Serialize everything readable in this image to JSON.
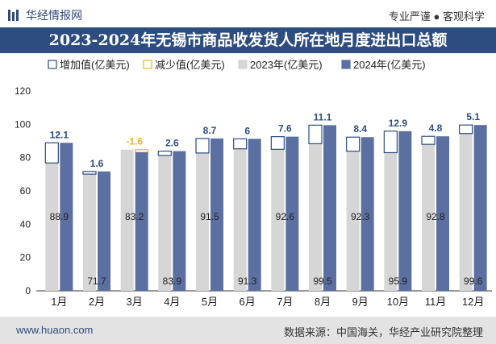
{
  "header": {
    "brand": "华经情报网",
    "slogan": "专业严谨 ● 客观科学"
  },
  "chart_data": {
    "type": "bar",
    "title": "2023-2024年无锡市商品收发货人所在地月度进出口总额",
    "categories": [
      "1月",
      "2月",
      "3月",
      "4月",
      "5月",
      "6月",
      "7月",
      "8月",
      "9月",
      "10月",
      "11月",
      "12月"
    ],
    "series": [
      {
        "name": "2023年(亿美元)",
        "values": [
          76.8,
          70.1,
          84.8,
          81.3,
          82.8,
          85.3,
          85.0,
          88.4,
          83.9,
          83.0,
          88.0,
          94.5
        ],
        "color": "#d6d6d6"
      },
      {
        "name": "2024年(亿美元)",
        "values": [
          88.9,
          71.7,
          83.2,
          83.9,
          91.5,
          91.3,
          92.6,
          99.5,
          92.3,
          95.9,
          92.8,
          99.6
        ],
        "color": "#5b6fa0"
      }
    ],
    "change_series": [
      {
        "name": "增加值(亿美元)",
        "color": "#2d4c80"
      },
      {
        "name": "减少值(亿美元)",
        "color": "#e6b81e"
      }
    ],
    "change_labels": [
      "12.1",
      "1.6",
      "-1.6",
      "2.6",
      "8.7",
      "6",
      "7.6",
      "11.1",
      "8.4",
      "12.9",
      "4.8",
      "5.1"
    ],
    "value_labels_2024": [
      "88.9",
      "71.7",
      "83.2",
      "83.9",
      "91.5",
      "91.3",
      "92.6",
      "99.5",
      "92.3",
      "95.9",
      "92.8",
      "99.6"
    ],
    "ylim": [
      0,
      120
    ],
    "yticks": [
      "0",
      "20",
      "40",
      "60",
      "80",
      "100",
      "120"
    ],
    "legend_position": "top",
    "grid": false
  },
  "footer": {
    "site": "www.huaon.com",
    "source": "数据来源：中国海关，华经产业研究院整理"
  }
}
